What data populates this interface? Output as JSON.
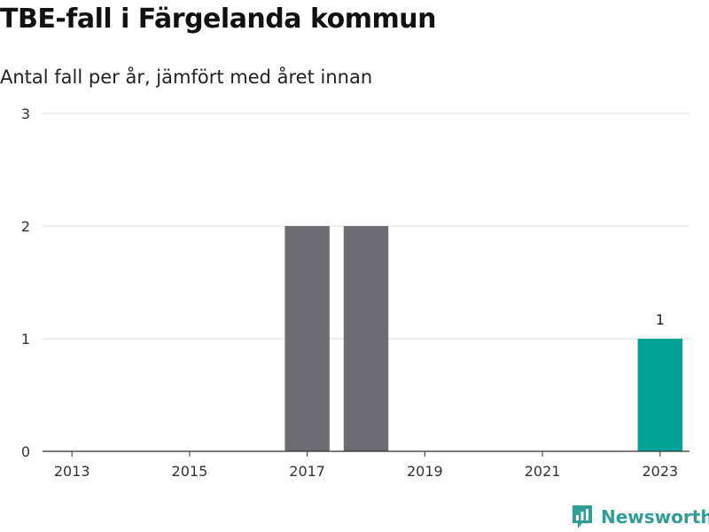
{
  "header": {
    "title": "TBE-fall i Färgelanda kommun",
    "subtitle": "Antal fall per år, jämfört med året innan"
  },
  "brand": {
    "name": "Newsworthy",
    "icon": "newsworthy-logo-icon",
    "color": "#2e9e96"
  },
  "chart_data": {
    "type": "bar",
    "title": "TBE-fall i Färgelanda kommun",
    "subtitle": "Antal fall per år, jämfört med året innan",
    "xlabel": "",
    "ylabel": "",
    "categories": [
      "2013",
      "2014",
      "2015",
      "2016",
      "2017",
      "2018",
      "2019",
      "2020",
      "2021",
      "2022",
      "2023"
    ],
    "values": [
      0,
      0,
      0,
      0,
      2,
      2,
      0,
      0,
      0,
      0,
      1
    ],
    "bar_colors": [
      "#6d6c72",
      "#6d6c72",
      "#6d6c72",
      "#6d6c72",
      "#6d6c72",
      "#6d6c72",
      "#6d6c72",
      "#6d6c72",
      "#6d6c72",
      "#6d6c72",
      "#00a497"
    ],
    "x_tick_labels": [
      "2013",
      "2015",
      "2017",
      "2019",
      "2021",
      "2023"
    ],
    "y_ticks": [
      0,
      1,
      2,
      3
    ],
    "ylim": [
      0,
      3
    ],
    "data_labels": [
      {
        "category": "2023",
        "value": 1,
        "text": "1"
      }
    ],
    "grid": true,
    "legend": "none"
  }
}
